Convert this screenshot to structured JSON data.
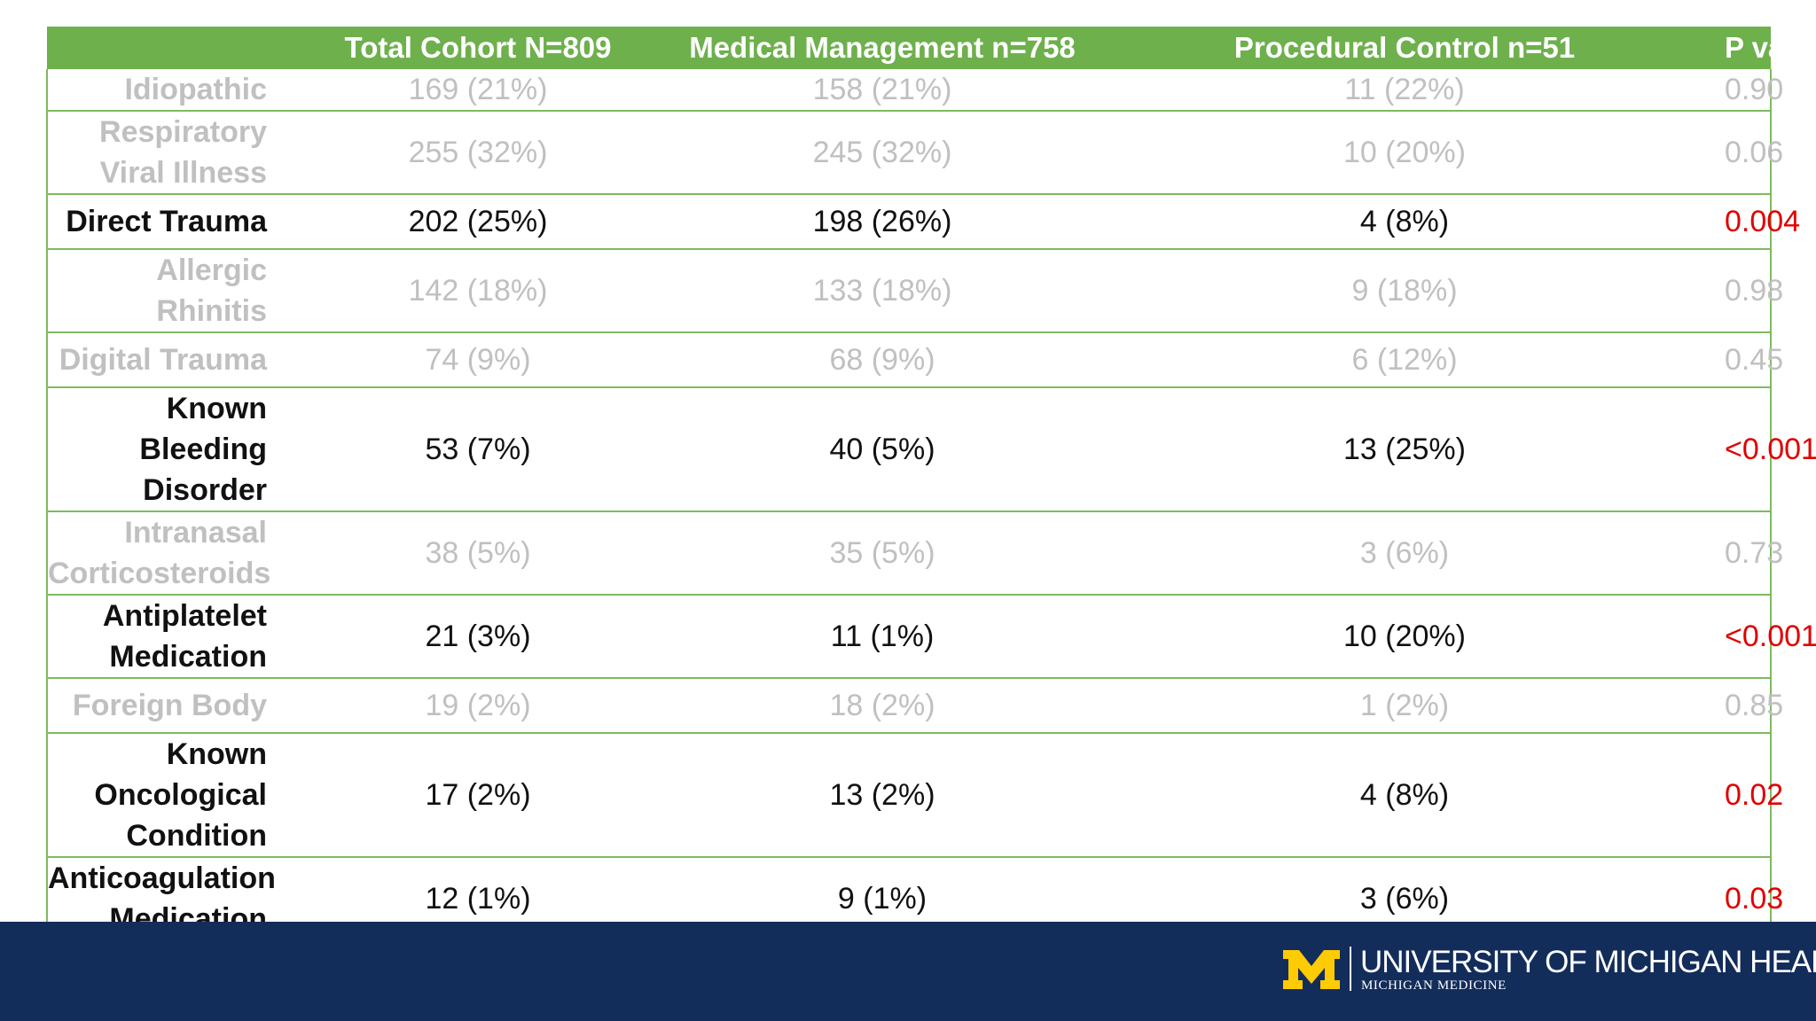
{
  "table": {
    "headers": [
      "",
      "Total Cohort N=809",
      "Medical Management n=758",
      "Procedural Control n=51",
      "P value"
    ],
    "rows": [
      {
        "label": "Idiopathic",
        "total": "169 (21%)",
        "medical": "158 (21%)",
        "procedural": "11 (22%)",
        "p": "0.90",
        "significant": false
      },
      {
        "label": "Respiratory Viral Illness",
        "total": "255 (32%)",
        "medical": "245 (32%)",
        "procedural": "10 (20%)",
        "p": "0.06",
        "significant": false
      },
      {
        "label": "Direct Trauma",
        "total": "202 (25%)",
        "medical": "198 (26%)",
        "procedural": "4 (8%)",
        "p": "0.004",
        "significant": true
      },
      {
        "label": "Allergic Rhinitis",
        "total": "142 (18%)",
        "medical": "133 (18%)",
        "procedural": "9 (18%)",
        "p": "0.98",
        "significant": false
      },
      {
        "label": "Digital Trauma",
        "total": "74 (9%)",
        "medical": "68 (9%)",
        "procedural": "6 (12%)",
        "p": "0.45",
        "significant": false
      },
      {
        "label": "Known Bleeding Disorder",
        "total": "53 (7%)",
        "medical": "40 (5%)",
        "procedural": "13 (25%)",
        "p": "<0.001",
        "significant": true
      },
      {
        "label": "Intranasal Corticosteroids",
        "total": "38 (5%)",
        "medical": "35 (5%)",
        "procedural": "3 (6%)",
        "p": "0.73",
        "significant": false
      },
      {
        "label": "Antiplatelet Medication",
        "total": "21 (3%)",
        "medical": "11 (1%)",
        "procedural": "10 (20%)",
        "p": "<0.001",
        "significant": true
      },
      {
        "label": "Foreign Body",
        "total": "19 (2%)",
        "medical": "18 (2%)",
        "procedural": "1 (2%)",
        "p": "0.85",
        "significant": false
      },
      {
        "label": "Known Oncological Condition",
        "total": "17 (2%)",
        "medical": "13 (2%)",
        "procedural": "4 (8%)",
        "p": "0.02",
        "significant": true
      },
      {
        "label": "Anticoagulation Medication",
        "total": "12 (1%)",
        "medical": "9 (1%)",
        "procedural": "3 (6%)",
        "p": "0.03",
        "significant": true
      }
    ]
  },
  "footer": {
    "logo_mark": "M",
    "org_name": "UNIVERSITY OF MICHIGAN HEALTH",
    "org_sub": "MICHIGAN MEDICINE"
  },
  "colors": {
    "header_green": "#6eb04c",
    "row_border": "#7dbb5e",
    "muted_text": "#c0c0c0",
    "significant_p": "#e00000",
    "footer_navy": "#132d5b",
    "maize": "#ffcb05"
  }
}
